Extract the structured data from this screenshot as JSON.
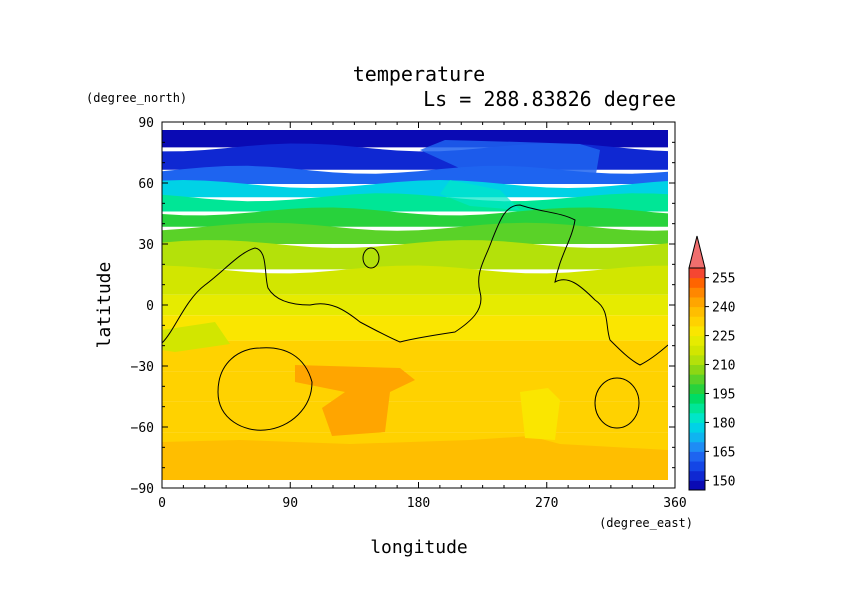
{
  "chart_data": {
    "type": "heatmap",
    "title": "temperature",
    "subtitle": "Ls = 288.83826 degree",
    "xlabel": "longitude",
    "ylabel": "latitude",
    "x_unit": "(degree_east)",
    "y_unit": "(degree_north)",
    "xlim": [
      0,
      360
    ],
    "ylim": [
      -90,
      90
    ],
    "x_ticks": [
      "0",
      "90",
      "180",
      "270",
      "360"
    ],
    "y_ticks": [
      "90",
      "60",
      "30",
      "0",
      "−30",
      "−60",
      "−90"
    ],
    "x_tick_values": [
      0,
      90,
      180,
      270,
      360
    ],
    "y_tick_values": [
      90,
      60,
      30,
      0,
      -30,
      -60,
      -90
    ],
    "colorbar": {
      "levels": [
        145,
        150,
        155,
        160,
        165,
        170,
        175,
        180,
        185,
        190,
        195,
        200,
        205,
        210,
        215,
        220,
        225,
        230,
        235,
        240,
        245,
        250,
        255,
        260
      ],
      "labels": [
        "255",
        "240",
        "225",
        "210",
        "195",
        "180",
        "165",
        "150"
      ],
      "label_values": [
        255,
        240,
        225,
        210,
        195,
        180,
        165,
        150
      ],
      "colors": [
        "#0a0ab4",
        "#0f28d2",
        "#1446e6",
        "#1e64f0",
        "#1e8cf5",
        "#0fb4f0",
        "#00d2e6",
        "#00e6c8",
        "#00e696",
        "#00dc64",
        "#28d23c",
        "#5ad228",
        "#8cd714",
        "#b4e10a",
        "#d2e600",
        "#e6eb00",
        "#fae600",
        "#ffd200",
        "#ffbe00",
        "#ffa500",
        "#ff8700",
        "#ff6400",
        "#f54632",
        "#f06e6e"
      ]
    },
    "lat_profile": [
      {
        "lat": 85,
        "temp": 147
      },
      {
        "lat": 70,
        "temp": 150
      },
      {
        "lat": 63,
        "temp": 162
      },
      {
        "lat": 56,
        "temp": 178
      },
      {
        "lat": 50,
        "temp": 188
      },
      {
        "lat": 42,
        "temp": 197
      },
      {
        "lat": 35,
        "temp": 204
      },
      {
        "lat": 25,
        "temp": 212
      },
      {
        "lat": 10,
        "temp": 218
      },
      {
        "lat": 0,
        "temp": 222
      },
      {
        "lat": -10,
        "temp": 225
      },
      {
        "lat": -25,
        "temp": 230
      },
      {
        "lat": -40,
        "temp": 233
      },
      {
        "lat": -55,
        "temp": 233
      },
      {
        "lat": -70,
        "temp": 234
      },
      {
        "lat": -85,
        "temp": 234
      }
    ]
  }
}
